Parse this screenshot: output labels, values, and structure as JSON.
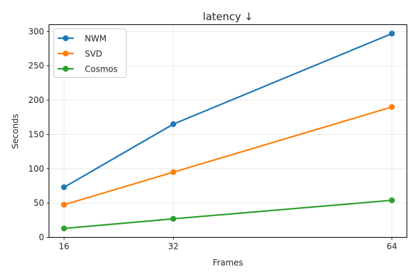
{
  "chart_data": {
    "type": "line",
    "title": "latency ↓",
    "xlabel": "Frames",
    "ylabel": "Seconds",
    "x": [
      16,
      32,
      64
    ],
    "xticks": [
      "16",
      "32",
      "64"
    ],
    "yticks": [
      "0",
      "50",
      "100",
      "150",
      "200",
      "250",
      "300"
    ],
    "xlim": [
      13.8,
      66.2
    ],
    "ylim": [
      0,
      310
    ],
    "grid": true,
    "legend": "top-left",
    "series": [
      {
        "name": "NWM",
        "values": [
          73,
          165,
          297
        ],
        "color": "#1f77b4"
      },
      {
        "name": "SVD",
        "values": [
          47.5,
          95,
          190
        ],
        "color": "#ff7f0e"
      },
      {
        "name": "Cosmos",
        "values": [
          13,
          27,
          54
        ],
        "color": "#2ca02c"
      }
    ]
  }
}
